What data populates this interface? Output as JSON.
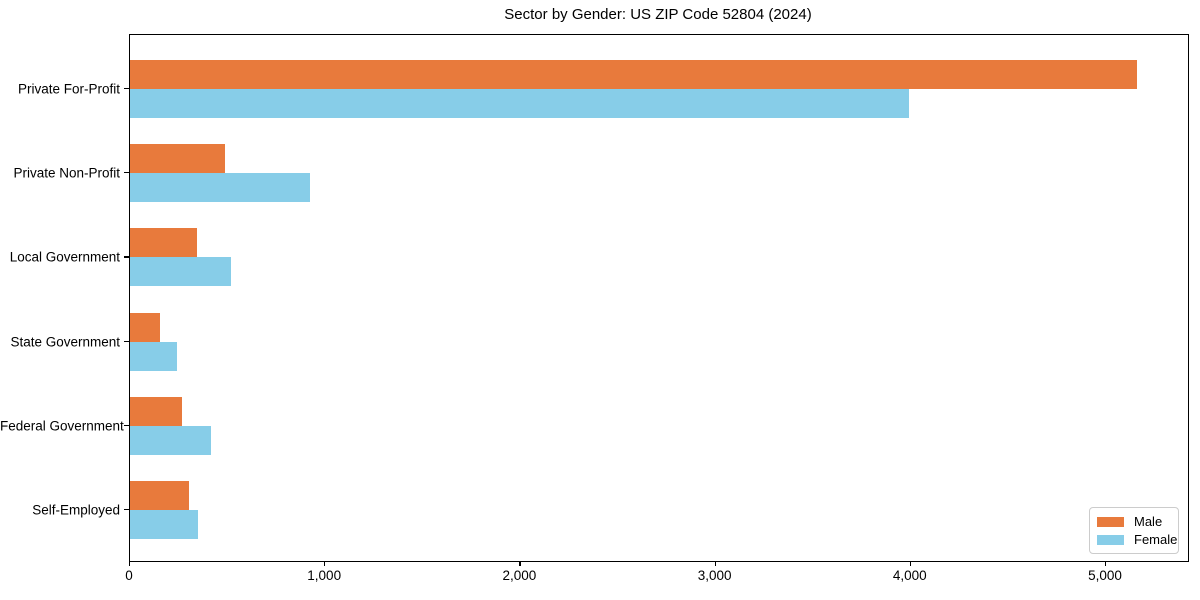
{
  "chart_data": {
    "type": "bar",
    "orientation": "horizontal",
    "title": "Sector by Gender: US ZIP Code 52804 (2024)",
    "categories": [
      "Private For-Profit",
      "Private Non-Profit",
      "Local Government",
      "State Government",
      "Federal Government",
      "Self-Employed"
    ],
    "series": [
      {
        "name": "Male",
        "color": "#E87A3C",
        "values": [
          5160,
          485,
          345,
          155,
          265,
          300
        ]
      },
      {
        "name": "Female",
        "color": "#87CDE8",
        "values": [
          3990,
          920,
          515,
          240,
          415,
          350
        ]
      }
    ],
    "xlabel": "",
    "ylabel": "",
    "xlim": [
      0,
      5420
    ],
    "x_ticks": [
      0,
      1000,
      2000,
      3000,
      4000,
      5000
    ],
    "x_tick_labels": [
      "0",
      "1,000",
      "2,000",
      "3,000",
      "4,000",
      "5,000"
    ],
    "grid": false,
    "legend_position": "lower right",
    "axis_color": "#000000",
    "background_color": "#ffffff"
  }
}
